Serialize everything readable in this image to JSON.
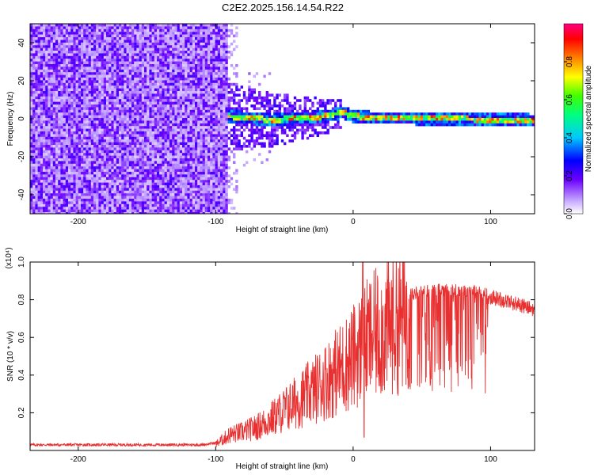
{
  "title": "C2E2.2025.156.14.54.R22",
  "colors": {
    "snr_line": "#e83030",
    "axis": "#000000",
    "background": "#ffffff"
  },
  "chart_data": [
    {
      "type": "heatmap",
      "title": "C2E2.2025.156.14.54.R22",
      "xlabel": "Height of straight line (km)",
      "ylabel": "Frequency (Hz)",
      "xlim": [
        -235,
        132
      ],
      "ylim": [
        -50,
        50
      ],
      "xticks": [
        -200,
        -100,
        0,
        100
      ],
      "yticks": [
        -40,
        -20,
        0,
        20,
        40
      ],
      "colorbar": {
        "label": "Normalized spectral amplitude",
        "range": [
          0,
          1
        ],
        "ticks": [
          "0.0",
          "0.2",
          "0.4",
          "0.6",
          "0.8"
        ]
      },
      "regions": [
        {
          "description": "broadband noise",
          "x_range": [
            -235,
            -92
          ],
          "freq_range": [
            -50,
            50
          ],
          "amplitude": 0.18
        },
        {
          "description": "spreading echo",
          "x_range": [
            -92,
            -10
          ],
          "freq_range": [
            -20,
            20
          ],
          "amplitude": 0.3
        },
        {
          "description": "narrow signal near 0 Hz",
          "x_range": [
            -92,
            132
          ],
          "center_freq": [
            [
              -92,
              2
            ],
            [
              -60,
              0
            ],
            [
              -20,
              2
            ],
            [
              -10,
              4
            ],
            [
              0,
              2
            ],
            [
              20,
              1
            ],
            [
              132,
              0
            ]
          ],
          "peak_amplitude": 0.9
        }
      ],
      "grid": false
    },
    {
      "type": "line",
      "xlabel": "Height of straight line (km)",
      "ylabel": "SNR (10 * v/v)",
      "y_multiplier": "(x10⁴)",
      "xlim": [
        -235,
        132
      ],
      "ylim": [
        0,
        1.0
      ],
      "xticks": [
        -200,
        -100,
        0,
        100
      ],
      "yticks": [
        0.2,
        0.4,
        0.6,
        0.8,
        1.0
      ],
      "grid": false,
      "series": [
        {
          "x": [
            -235,
            -200,
            -150,
            -110,
            -100,
            -95,
            -90,
            -80,
            -70,
            -60,
            -50,
            -40,
            -30,
            -20,
            -10,
            0,
            5,
            10,
            20,
            30,
            40,
            50,
            60,
            70,
            80,
            90,
            100,
            110,
            120,
            132
          ],
          "y": [
            0.03,
            0.03,
            0.03,
            0.03,
            0.04,
            0.07,
            0.1,
            0.12,
            0.15,
            0.2,
            0.26,
            0.32,
            0.38,
            0.45,
            0.52,
            0.6,
            0.65,
            0.7,
            0.77,
            0.82,
            0.85,
            0.86,
            0.87,
            0.87,
            0.87,
            0.86,
            0.84,
            0.82,
            0.8,
            0.77
          ]
        }
      ]
    }
  ]
}
